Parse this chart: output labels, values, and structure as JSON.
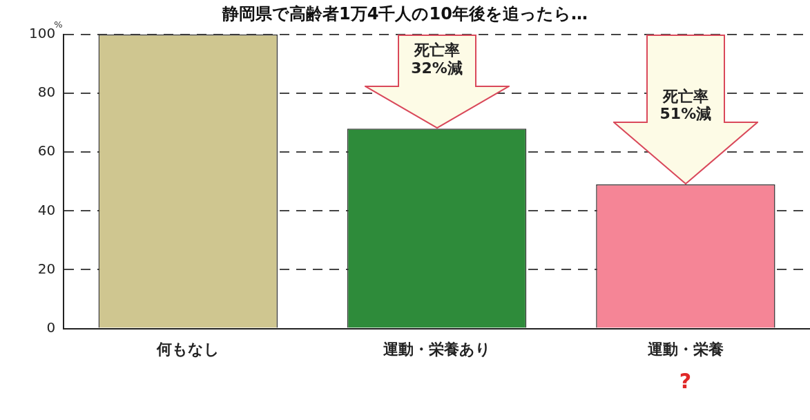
{
  "chart_data": {
    "type": "bar",
    "title": "静岡県で高齢者1万4千人の10年後を追ったら…",
    "ylabel": "%",
    "categories": [
      "何もなし",
      "運動・栄養あり",
      "運動・栄養"
    ],
    "values": [
      100,
      68,
      49
    ],
    "colors": [
      "#cfc690",
      "#2e8b3a",
      "#f58596"
    ],
    "ylim": [
      0,
      100
    ],
    "yticks": [
      0,
      20,
      40,
      60,
      80,
      100
    ],
    "grid": "y",
    "annotations": [
      "死亡率\n32%減",
      "死亡率\n51%減",
      "?"
    ]
  }
}
